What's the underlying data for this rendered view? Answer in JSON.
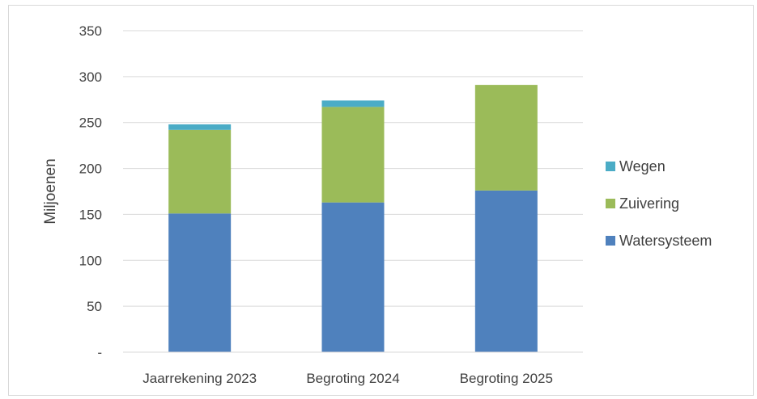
{
  "chart_data": {
    "type": "bar",
    "stacked": true,
    "title": "",
    "xlabel": "",
    "ylabel": "Miljoenen",
    "ylim": [
      0,
      350
    ],
    "yticks": [
      0,
      50,
      100,
      150,
      200,
      250,
      300,
      350
    ],
    "ytick_labels": [
      "-",
      "50",
      "100",
      "150",
      "200",
      "250",
      "300",
      "350"
    ],
    "categories": [
      "Jaarrekening 2023",
      "Begroting 2024",
      "Begroting 2025"
    ],
    "series": [
      {
        "name": "Watersysteem",
        "values": [
          151,
          163,
          176
        ],
        "color": "#4f81bd"
      },
      {
        "name": "Zuivering",
        "values": [
          91,
          104,
          115
        ],
        "color": "#9bbb59"
      },
      {
        "name": "Wegen",
        "values": [
          6,
          7,
          0
        ],
        "color": "#4bacc6"
      }
    ],
    "grid": true,
    "legend": "right",
    "legend_order": [
      "Wegen",
      "Zuivering",
      "Watersysteem"
    ]
  }
}
